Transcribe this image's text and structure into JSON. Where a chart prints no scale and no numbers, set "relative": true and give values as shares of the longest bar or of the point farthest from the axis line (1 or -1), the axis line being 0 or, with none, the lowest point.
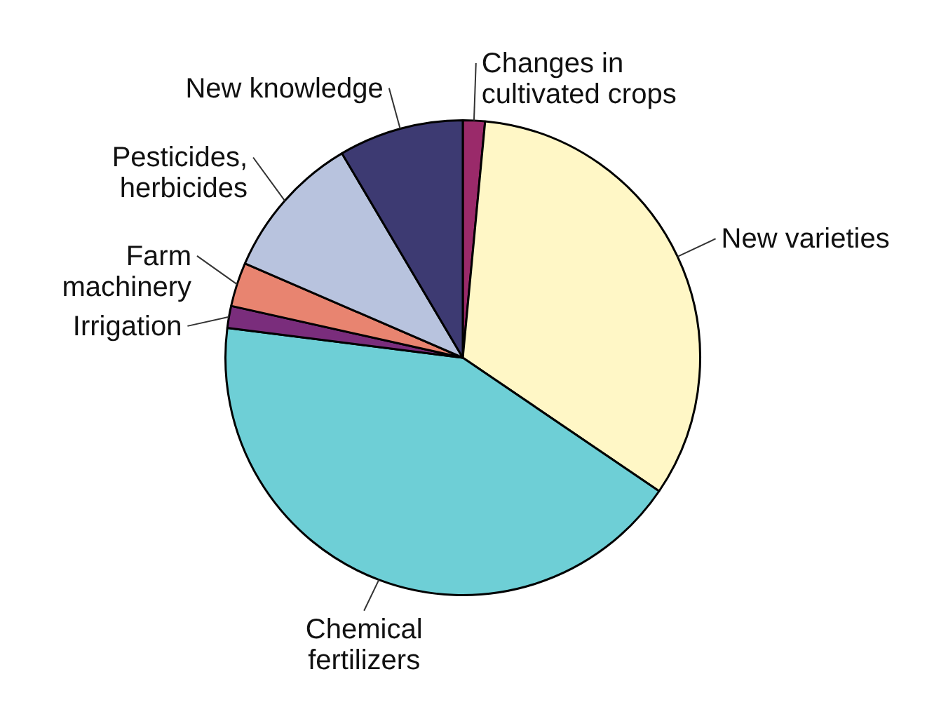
{
  "chart_data": {
    "type": "pie",
    "relative": true,
    "categories": [
      "Changes in\ncultivated crops",
      "New varieties",
      "Chemical\nfertilizers",
      "Irrigation",
      "Farm\nmachinery",
      "Pesticides,\nherbicides",
      "New knowledge"
    ],
    "values": [
      1.5,
      33,
      42.5,
      1.5,
      3,
      10,
      8.5
    ],
    "colors": [
      "#9a2a6a",
      "#fff7c6",
      "#6ecfd6",
      "#7a2d7c",
      "#e88470",
      "#b8c3de",
      "#3d3a72"
    ],
    "legend": false
  }
}
